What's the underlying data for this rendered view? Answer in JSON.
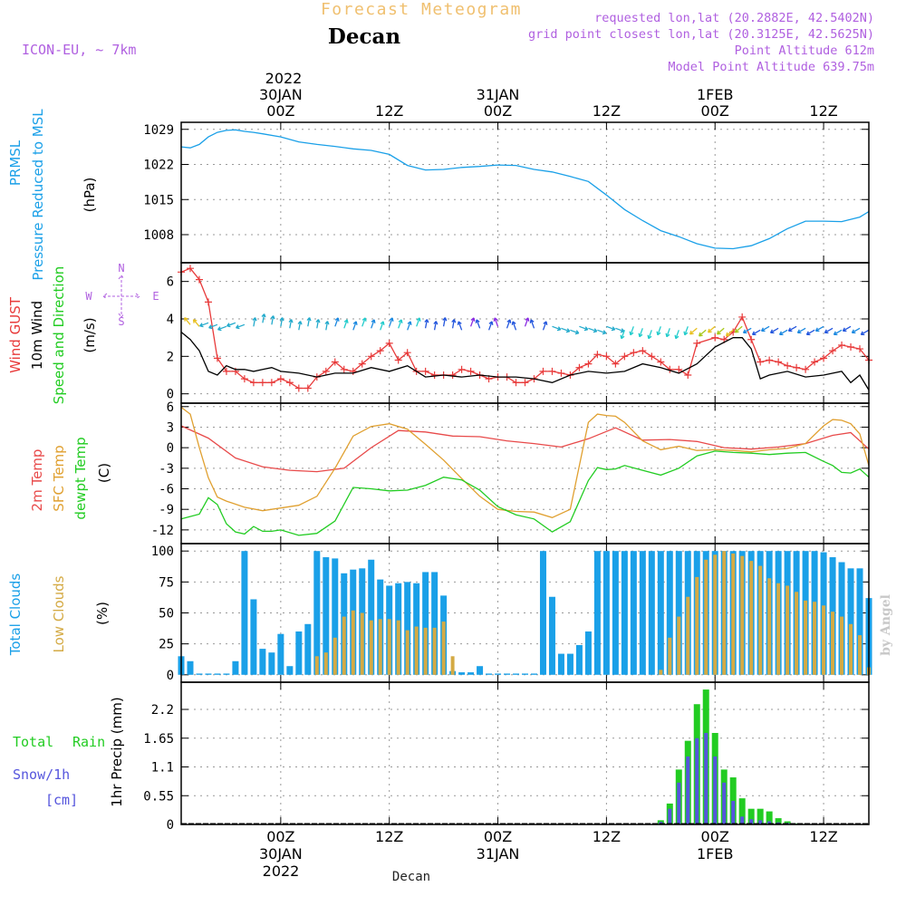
{
  "header": {
    "product": "Forecast Meteogram",
    "location": "Decan",
    "model": "ICON-EU, ~ 7km",
    "requested": "requested lon,lat (20.2882E, 42.5402N)",
    "gridpoint": "grid point closest lon,lat (20.3125E, 42.5625N)",
    "altitude": "Point Altitude 612m",
    "model_altitude": "Model Point Altitude 639.75m"
  },
  "footer": {
    "location": "Decan",
    "credit": "by Angel"
  },
  "time_axis": {
    "year": "2022",
    "ticks": [
      {
        "h": 0,
        "hour": "00Z",
        "date": "30JAN"
      },
      {
        "h": 12,
        "hour": "12Z",
        "date": ""
      },
      {
        "h": 24,
        "hour": "00Z",
        "date": "31JAN"
      },
      {
        "h": 36,
        "hour": "12Z",
        "date": ""
      },
      {
        "h": 48,
        "hour": "00Z",
        "date": "1FEB"
      },
      {
        "h": 60,
        "hour": "12Z",
        "date": ""
      }
    ],
    "range_hours": [
      -11,
      65
    ]
  },
  "colors": {
    "pressure": "#1aa0e8",
    "gust": "#e83a3a",
    "wind": "#000000",
    "temp2m": "#e84a4a",
    "sfc": "#e0a030",
    "dewpt": "#22cc22",
    "total_cloud": "#1aa0e8",
    "low_cloud": "#d4aa44",
    "rain": "#22cc22",
    "snow": "#5555dd",
    "title_orange": "#f0c070",
    "purple": "#b060e0"
  },
  "panels": {
    "pressure": {
      "labels": [
        "PRMSL",
        "Pressure Reduced to MSL",
        "(hPa)"
      ]
    },
    "wind": {
      "labels": [
        "Wind GUST",
        "10m Wind",
        "Speed and Direction",
        "(m/s)"
      ],
      "compass": {
        "n": "N",
        "s": "S",
        "w": "W",
        "e": "E"
      }
    },
    "temp": {
      "labels": [
        "2m Temp",
        "SFC Temp",
        "dewpt Temp",
        "(C)"
      ]
    },
    "cloud": {
      "labels": [
        "Total Clouds",
        "Low Clouds",
        "(%)"
      ]
    },
    "precip": {
      "labels": [
        "Total",
        "Rain",
        "Snow/1h",
        "[cm]",
        "1hr Precip (mm)"
      ]
    }
  },
  "chart_data": [
    {
      "type": "line",
      "title": "PRMSL Pressure Reduced to MSL",
      "ylabel": "(hPa)",
      "ylim": [
        1002.4,
        1030.4
      ],
      "yticks": [
        1008,
        1015,
        1022,
        1029
      ],
      "grid": true,
      "series": [
        {
          "name": "PRMSL",
          "x": [
            -11,
            -10,
            -9,
            -8,
            -7,
            -6,
            -5,
            -4,
            -3,
            -2,
            0,
            2,
            4,
            6,
            8,
            10,
            12,
            14,
            16,
            18,
            20,
            22,
            24,
            26,
            28,
            30,
            32,
            34,
            36,
            38,
            40,
            42,
            44,
            46,
            48,
            50,
            52,
            54,
            56,
            58,
            60,
            62,
            64,
            65
          ],
          "y": [
            1025.5,
            1025.3,
            1026.0,
            1027.5,
            1028.4,
            1028.8,
            1028.9,
            1028.6,
            1028.4,
            1028.1,
            1027.5,
            1026.5,
            1026.0,
            1025.6,
            1025.1,
            1024.8,
            1024.0,
            1021.8,
            1020.9,
            1021.0,
            1021.4,
            1021.6,
            1021.9,
            1021.8,
            1021.0,
            1020.5,
            1019.6,
            1018.6,
            1015.9,
            1013.0,
            1010.8,
            1008.8,
            1007.6,
            1006.2,
            1005.3,
            1005.2,
            1005.8,
            1007.2,
            1009.2,
            1010.7,
            1010.7,
            1010.6,
            1011.5,
            1012.6
          ]
        }
      ]
    },
    {
      "type": "line",
      "title": "Wind GUST / 10m Wind Speed and Direction",
      "ylabel": "(m/s)",
      "ylim": [
        -0.5,
        7
      ],
      "yticks": [
        0,
        2,
        4,
        6
      ],
      "grid": true,
      "series": [
        {
          "name": "Wind GUST",
          "x": [
            -11,
            -10,
            -9,
            -8,
            -7,
            -6,
            -5,
            -4,
            -3,
            -2,
            -1,
            0,
            1,
            2,
            3,
            4,
            5,
            6,
            7,
            8,
            9,
            10,
            11,
            12,
            13,
            14,
            15,
            16,
            17,
            18,
            19,
            20,
            21,
            22,
            23,
            24,
            25,
            26,
            27,
            28,
            29,
            30,
            31,
            32,
            33,
            34,
            35,
            36,
            37,
            38,
            39,
            40,
            41,
            42,
            43,
            44,
            45,
            46,
            48,
            49,
            50,
            51,
            52,
            53,
            54,
            55,
            56,
            57,
            58,
            59,
            60,
            61,
            62,
            63,
            64,
            65
          ],
          "y": [
            6.5,
            6.7,
            6.1,
            4.9,
            1.9,
            1.2,
            1.2,
            0.8,
            0.6,
            0.6,
            0.6,
            0.8,
            0.6,
            0.3,
            0.3,
            0.9,
            1.2,
            1.7,
            1.3,
            1.2,
            1.6,
            2.0,
            2.3,
            2.7,
            1.8,
            2.2,
            1.2,
            1.2,
            1.0,
            1.0,
            1.0,
            1.3,
            1.2,
            1.0,
            0.8,
            0.9,
            0.9,
            0.6,
            0.6,
            0.8,
            1.2,
            1.2,
            1.1,
            1.0,
            1.4,
            1.6,
            2.1,
            2.0,
            1.6,
            2.0,
            2.2,
            2.3,
            2.0,
            1.7,
            1.3,
            1.3,
            1.0,
            2.7,
            3.0,
            2.9,
            3.3,
            4.1,
            2.9,
            1.7,
            1.8,
            1.7,
            1.5,
            1.4,
            1.3,
            1.7,
            1.9,
            2.3,
            2.6,
            2.5,
            2.4,
            1.8
          ]
        },
        {
          "name": "10m Wind",
          "x": [
            -11,
            -10,
            -9,
            -8,
            -7,
            -6,
            -5,
            -4,
            -3,
            -2,
            -1,
            0,
            2,
            4,
            6,
            8,
            10,
            12,
            14,
            16,
            18,
            20,
            22,
            24,
            26,
            28,
            30,
            32,
            34,
            36,
            38,
            40,
            42,
            44,
            46,
            48,
            50,
            51,
            52,
            53,
            54,
            56,
            58,
            60,
            62,
            63,
            64,
            65
          ],
          "y": [
            3.3,
            2.9,
            2.3,
            1.2,
            1.0,
            1.5,
            1.3,
            1.3,
            1.2,
            1.3,
            1.4,
            1.2,
            1.1,
            0.9,
            1.1,
            1.1,
            1.4,
            1.2,
            1.5,
            0.9,
            1.0,
            0.9,
            1.0,
            0.9,
            0.9,
            0.8,
            0.6,
            1.0,
            1.2,
            1.1,
            1.2,
            1.6,
            1.4,
            1.1,
            1.6,
            2.5,
            3.0,
            3.0,
            2.4,
            0.8,
            1.0,
            1.2,
            0.9,
            1.0,
            1.2,
            0.6,
            1.0,
            0.2
          ]
        }
      ]
    },
    {
      "type": "line",
      "title": "2m Temp / SFC Temp / dewpt Temp",
      "ylabel": "(C)",
      "ylim": [
        -14,
        6.5
      ],
      "yticks": [
        -12,
        -9,
        -6,
        -3,
        0,
        3,
        6
      ],
      "grid": true,
      "series": [
        {
          "name": "2m Temp",
          "x": [
            -11,
            -8,
            -5,
            -2,
            1,
            4,
            7,
            10,
            13,
            16,
            19,
            22,
            25,
            28,
            31,
            34,
            37,
            40,
            43,
            46,
            49,
            52,
            55,
            58,
            61,
            63,
            65
          ],
          "y": [
            3.2,
            1.4,
            -1.5,
            -2.8,
            -3.3,
            -3.5,
            -3.0,
            0.0,
            2.5,
            2.3,
            1.7,
            1.6,
            1.0,
            0.6,
            0.1,
            1.3,
            2.9,
            1.1,
            1.2,
            0.9,
            0.0,
            -0.2,
            0.1,
            0.6,
            1.8,
            2.2,
            -0.2
          ]
        },
        {
          "name": "SFC Temp",
          "x": [
            -11,
            -10,
            -9,
            -8,
            -7,
            -6,
            -4,
            -2,
            0,
            2,
            4,
            6,
            8,
            10,
            12,
            14,
            16,
            18,
            20,
            22,
            24,
            26,
            28,
            30,
            32,
            34,
            35,
            36,
            37,
            38,
            40,
            42,
            44,
            46,
            48,
            50,
            52,
            54,
            56,
            58,
            60,
            61,
            62,
            63,
            64,
            65
          ],
          "y": [
            5.9,
            4.9,
            0.0,
            -4.4,
            -7.2,
            -7.8,
            -8.7,
            -9.2,
            -8.8,
            -8.4,
            -7.1,
            -3.0,
            1.7,
            3.1,
            3.5,
            2.7,
            0.5,
            -1.8,
            -4.5,
            -7.1,
            -9.0,
            -9.3,
            -9.4,
            -10.2,
            -9.0,
            3.7,
            4.9,
            4.7,
            4.6,
            3.7,
            1.0,
            -0.3,
            0.2,
            -0.4,
            -0.3,
            -0.4,
            -0.6,
            -0.3,
            -0.1,
            0.6,
            3.2,
            4.1,
            4.0,
            3.5,
            2.0,
            -2.6
          ]
        },
        {
          "name": "dewpt Temp",
          "x": [
            -11,
            -9,
            -8,
            -7,
            -6,
            -5,
            -4,
            -3,
            -2,
            -1,
            0,
            2,
            4,
            6,
            8,
            10,
            12,
            14,
            16,
            18,
            20,
            22,
            24,
            26,
            28,
            30,
            32,
            34,
            35,
            36,
            37,
            38,
            40,
            42,
            44,
            46,
            48,
            50,
            52,
            54,
            56,
            58,
            60,
            61,
            62,
            63,
            64,
            65
          ],
          "y": [
            -10.4,
            -9.7,
            -7.3,
            -8.3,
            -11.1,
            -12.3,
            -12.6,
            -11.5,
            -12.2,
            -12.2,
            -12.0,
            -12.8,
            -12.5,
            -10.7,
            -5.8,
            -6.0,
            -6.3,
            -6.2,
            -5.5,
            -4.3,
            -4.7,
            -6.2,
            -8.6,
            -9.8,
            -10.4,
            -12.3,
            -10.8,
            -4.8,
            -2.9,
            -3.2,
            -3.1,
            -2.6,
            -3.3,
            -4.0,
            -3.0,
            -1.2,
            -0.5,
            -0.7,
            -0.8,
            -1.0,
            -0.8,
            -0.7,
            -2.0,
            -2.6,
            -3.6,
            -3.7,
            -3.1,
            -4.3
          ]
        }
      ]
    },
    {
      "type": "bar",
      "title": "Total Clouds / Low Clouds",
      "ylabel": "(%)",
      "ylim": [
        -6,
        106
      ],
      "yticks": [
        0,
        25,
        50,
        75,
        100
      ],
      "grid": true,
      "hours": [
        -11,
        -10,
        -9,
        -8,
        -7,
        -6,
        -5,
        -4,
        -3,
        -2,
        -1,
        0,
        1,
        2,
        3,
        4,
        5,
        6,
        7,
        8,
        9,
        10,
        11,
        12,
        13,
        14,
        15,
        16,
        17,
        18,
        19,
        20,
        21,
        22,
        23,
        24,
        25,
        26,
        27,
        28,
        29,
        30,
        31,
        32,
        33,
        34,
        35,
        36,
        37,
        38,
        39,
        40,
        41,
        42,
        43,
        44,
        45,
        46,
        47,
        48,
        49,
        50,
        51,
        52,
        53,
        54,
        55,
        56,
        57,
        58,
        59,
        60,
        61,
        62,
        63,
        64,
        65
      ],
      "series": [
        {
          "name": "Total Clouds",
          "values": [
            15,
            11,
            1,
            1,
            1,
            1,
            11,
            100,
            61,
            21,
            18,
            33,
            7,
            35,
            41,
            100,
            95,
            94,
            82,
            85,
            86,
            93,
            77,
            72,
            74,
            75,
            74,
            83,
            83,
            64,
            3,
            2,
            2,
            7,
            1,
            1,
            1,
            1,
            1,
            1,
            100,
            63,
            17,
            17,
            24,
            35,
            100,
            100,
            100,
            100,
            100,
            100,
            100,
            100,
            100,
            100,
            100,
            100,
            100,
            100,
            100,
            100,
            100,
            100,
            100,
            100,
            100,
            100,
            100,
            100,
            100,
            99,
            95,
            91,
            86,
            86,
            62
          ]
        },
        {
          "name": "Low Clouds",
          "values": [
            0,
            0,
            0,
            0,
            0,
            0,
            0,
            0,
            0,
            0,
            0,
            0,
            0,
            0,
            0,
            15,
            18,
            30,
            47,
            52,
            50,
            44,
            45,
            45,
            44,
            36,
            39,
            38,
            38,
            43,
            15,
            0,
            0,
            0,
            0,
            0,
            0,
            0,
            0,
            0,
            0,
            0,
            0,
            0,
            0,
            0,
            0,
            0,
            0,
            0,
            0,
            0,
            0,
            4,
            30,
            47,
            63,
            79,
            93,
            97,
            100,
            98,
            96,
            92,
            88,
            78,
            74,
            72,
            67,
            60,
            59,
            56,
            51,
            47,
            41,
            32,
            6
          ]
        }
      ]
    },
    {
      "type": "bar",
      "title": "1hr Precip (mm)",
      "ylabel": "1hr Precip (mm)",
      "ylim": [
        0,
        2.72
      ],
      "yticks": [
        0,
        0.55,
        1.1,
        1.65,
        2.2
      ],
      "grid": true,
      "hours": [
        42,
        43,
        44,
        45,
        46,
        47,
        48,
        49,
        50,
        51,
        52,
        53,
        54,
        55,
        56,
        57,
        58
      ],
      "series": [
        {
          "name": "Total Rain",
          "values": [
            0.08,
            0.4,
            1.05,
            1.6,
            2.3,
            2.58,
            1.75,
            1.05,
            0.9,
            0.5,
            0.3,
            0.3,
            0.25,
            0.12,
            0.06,
            0.02,
            0.01
          ]
        },
        {
          "name": "Snow/1h",
          "values": [
            0.05,
            0.3,
            0.8,
            1.3,
            1.65,
            1.75,
            1.3,
            0.8,
            0.45,
            0.15,
            0.1,
            0.08,
            0.06,
            0.04,
            0.03,
            0.01,
            0.0
          ]
        }
      ]
    }
  ]
}
